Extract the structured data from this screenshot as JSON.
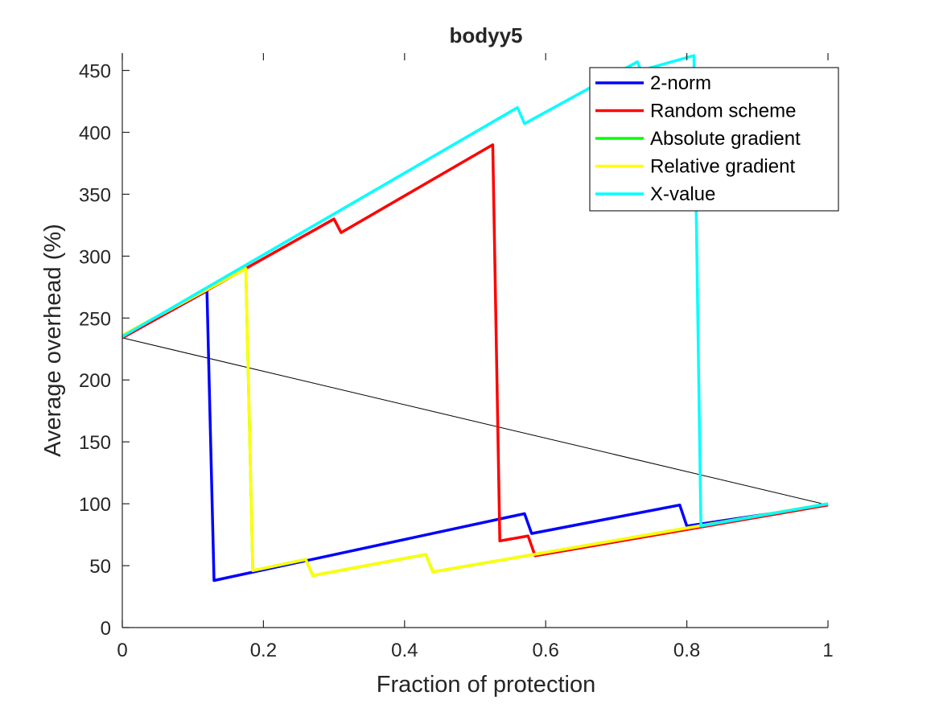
{
  "chart_data": {
    "type": "line",
    "title": "bodyy5",
    "xlabel": "Fraction of protection",
    "ylabel": "Average overhead (%)",
    "xlim": [
      0,
      1
    ],
    "ylim": [
      0,
      450
    ],
    "xticks": [
      0,
      0.2,
      0.4,
      0.6,
      0.8,
      1
    ],
    "xtick_labels": [
      "0",
      "0.2",
      "0.4",
      "0.6",
      "0.8",
      "1"
    ],
    "yticks": [
      0,
      50,
      100,
      150,
      200,
      250,
      300,
      350,
      400,
      450
    ],
    "ytick_labels": [
      "0",
      "50",
      "100",
      "150",
      "200",
      "250",
      "300",
      "350",
      "400",
      "450"
    ],
    "grid": false,
    "legend_position": "top-right",
    "baseline": {
      "color": "#000000",
      "x": [
        0,
        1
      ],
      "y": [
        234,
        99
      ]
    },
    "series": [
      {
        "name": "2-norm",
        "color": "#0000ff",
        "x": [
          0.0,
          0.12,
          0.13,
          0.57,
          0.58,
          0.79,
          0.8,
          1.0
        ],
        "y": [
          234,
          272,
          38,
          92,
          76,
          99,
          82,
          99
        ]
      },
      {
        "name": "Random scheme",
        "color": "#ff0000",
        "x": [
          0.0,
          0.3,
          0.31,
          0.525,
          0.535,
          0.575,
          0.585,
          1.0
        ],
        "y": [
          234,
          330,
          319,
          390,
          70,
          74,
          58,
          99
        ]
      },
      {
        "name": "Absolute gradient",
        "color": "#00ff00",
        "x": [
          0.0,
          0.175,
          0.185,
          0.26,
          0.27,
          0.43,
          0.44,
          1.0
        ],
        "y": [
          236,
          290,
          46,
          55,
          42,
          59,
          45,
          100
        ]
      },
      {
        "name": "Relative gradient",
        "color": "#ffff00",
        "x": [
          0.0,
          0.175,
          0.185,
          0.26,
          0.27,
          0.43,
          0.44,
          1.0
        ],
        "y": [
          236,
          290,
          46,
          55,
          42,
          59,
          45,
          100
        ]
      },
      {
        "name": "X-value",
        "color": "#00ffff",
        "x": [
          0.0,
          0.56,
          0.57,
          0.73,
          0.735,
          0.81,
          0.82,
          1.0
        ],
        "y": [
          235,
          420,
          407,
          457,
          450,
          462,
          82,
          100
        ]
      }
    ]
  }
}
